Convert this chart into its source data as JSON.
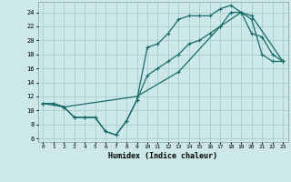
{
  "xlabel": "Humidex (Indice chaleur)",
  "xlim": [
    -0.5,
    23.5
  ],
  "ylim": [
    5.5,
    25.5
  ],
  "xticks": [
    0,
    1,
    2,
    3,
    4,
    5,
    6,
    7,
    8,
    9,
    10,
    11,
    12,
    13,
    14,
    15,
    16,
    17,
    18,
    19,
    20,
    21,
    22,
    23
  ],
  "yticks": [
    6,
    8,
    10,
    12,
    14,
    16,
    18,
    20,
    22,
    24
  ],
  "background_color": "#cce8e8",
  "grid_color": "#aacccc",
  "line_color": "#1a6b6b",
  "line1_x": [
    0,
    1,
    2,
    3,
    4,
    5,
    6,
    7,
    8,
    9,
    10,
    11,
    12,
    13,
    14,
    15,
    16,
    17,
    18,
    19,
    20,
    21,
    22,
    23
  ],
  "line1_y": [
    11,
    11,
    10.5,
    9,
    9,
    9,
    7,
    6.5,
    8.5,
    11.5,
    19,
    19.5,
    21,
    23,
    23.5,
    23.5,
    23.5,
    24.5,
    25,
    24,
    21,
    20.5,
    18,
    17
  ],
  "line2_x": [
    0,
    1,
    2,
    3,
    4,
    5,
    6,
    7,
    8,
    9,
    10,
    11,
    12,
    13,
    14,
    15,
    16,
    17,
    18,
    19,
    20,
    21,
    22,
    23
  ],
  "line2_y": [
    11,
    11,
    10.5,
    9,
    9,
    9,
    7,
    6.5,
    8.5,
    11.5,
    15,
    16,
    17,
    18,
    19.5,
    20,
    21,
    22,
    24,
    24,
    23,
    18,
    17,
    17
  ],
  "line3_x": [
    0,
    2,
    9,
    13,
    17,
    19,
    20,
    23
  ],
  "line3_y": [
    11,
    10.5,
    12,
    15.5,
    22,
    24,
    23.5,
    17
  ]
}
